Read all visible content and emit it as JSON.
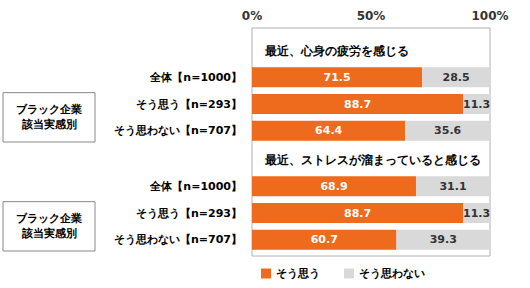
{
  "chart_data": [
    {
      "type": "bar",
      "orientation": "horizontal",
      "stacked": true,
      "data_labels": true,
      "grid": false,
      "title": "最近、心身の疲労を感じる",
      "annotations": [
        "ブラック企業\n該当実感別"
      ],
      "categories": [
        "全体【n=1000】",
        "そう思う【n=293】",
        "そう思わない【n=707】"
      ],
      "xlim": [
        0,
        100
      ],
      "xticks": [
        {
          "value": 0,
          "label": "0%"
        },
        {
          "value": 50,
          "label": "50%"
        },
        {
          "value": 100,
          "label": "100%"
        }
      ],
      "series": [
        {
          "name": "そう思う",
          "color": "#ee6a1c",
          "values": [
            71.5,
            88.7,
            64.4
          ]
        },
        {
          "name": "そう思わない",
          "color": "#d9d9d9",
          "values": [
            28.5,
            11.3,
            35.6
          ]
        }
      ]
    },
    {
      "type": "bar",
      "orientation": "horizontal",
      "stacked": true,
      "data_labels": true,
      "grid": false,
      "tick_labels": "y",
      "legend": "bottom",
      "title": "最近、ストレスが溜まっていると感じる",
      "annotations": [
        "ブラック企業\n該当実感別"
      ],
      "categories": [
        "全体【n=1000】",
        "そう思う【n=293】",
        "そう思わない【n=707】"
      ],
      "xlim": [
        0,
        100
      ],
      "xticks": [
        {
          "value": 0,
          "label": "0%"
        },
        {
          "value": 50,
          "label": "50%"
        },
        {
          "value": 100,
          "label": "100%"
        }
      ],
      "series": [
        {
          "name": "そう思う",
          "color": "#ee6a1c",
          "values": [
            68.9,
            88.7,
            60.7
          ]
        },
        {
          "name": "そう思わない",
          "color": "#d9d9d9",
          "values": [
            31.1,
            11.3,
            39.3
          ]
        }
      ]
    }
  ]
}
